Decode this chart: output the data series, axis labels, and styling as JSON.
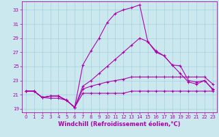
{
  "background_color": "#cce8ef",
  "grid_color": "#99ccdd",
  "line_color": "#aa00aa",
  "xlim": [
    -0.5,
    23.5
  ],
  "ylim": [
    18.5,
    34.2
  ],
  "xticks": [
    0,
    1,
    2,
    3,
    4,
    5,
    6,
    7,
    8,
    9,
    10,
    11,
    12,
    13,
    14,
    15,
    16,
    17,
    18,
    19,
    20,
    21,
    22,
    23
  ],
  "yticks": [
    19,
    21,
    23,
    25,
    27,
    29,
    31,
    33
  ],
  "lines": [
    {
      "y": [
        21.5,
        21.5,
        20.6,
        20.8,
        20.8,
        20.2,
        19.2,
        25.2,
        27.2,
        29.0,
        31.2,
        32.5,
        33.0,
        33.3,
        33.7,
        28.5,
        27.2,
        26.5,
        25.2,
        25.1,
        23.0,
        22.8,
        23.0,
        21.7
      ]
    },
    {
      "y": [
        21.5,
        21.5,
        20.6,
        20.8,
        20.8,
        20.2,
        19.2,
        22.2,
        23.0,
        24.0,
        25.0,
        26.0,
        27.0,
        28.0,
        29.0,
        28.5,
        27.0,
        26.5,
        25.2,
        24.0,
        22.8,
        22.5,
        23.0,
        21.8
      ]
    },
    {
      "y": [
        21.5,
        21.5,
        20.6,
        20.8,
        20.8,
        20.2,
        19.2,
        21.8,
        22.2,
        22.5,
        22.8,
        23.0,
        23.2,
        23.5,
        23.5,
        23.5,
        23.5,
        23.5,
        23.5,
        23.5,
        23.5,
        23.5,
        23.5,
        22.5
      ]
    },
    {
      "y": [
        21.5,
        21.5,
        20.6,
        20.5,
        20.5,
        20.2,
        19.2,
        21.2,
        21.2,
        21.2,
        21.2,
        21.2,
        21.2,
        21.5,
        21.5,
        21.5,
        21.5,
        21.5,
        21.5,
        21.5,
        21.5,
        21.5,
        21.5,
        21.5
      ]
    }
  ],
  "xlabel": "Windchill (Refroidissement éolien,°C)",
  "marker": "+",
  "markersize": 2.5,
  "linewidth": 0.8,
  "tick_fontsize": 5.0,
  "label_fontsize": 6.0
}
